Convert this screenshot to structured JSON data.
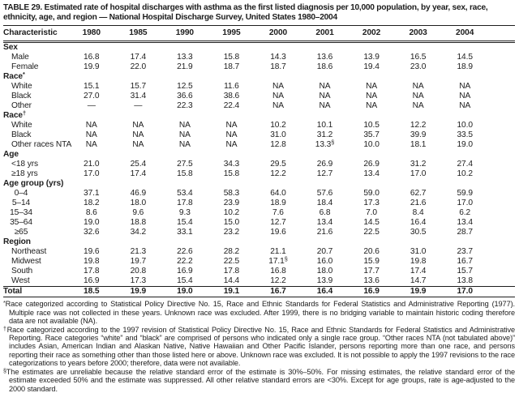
{
  "title": "TABLE 29. Estimated rate of hospital discharges with asthma as the first listed diagnosis per 10,000 population, by year, sex, race, ethnicity, age, and region — National Hospital Discharge Survey, United States 1980–2004",
  "table": {
    "char_header": "Characteristic",
    "years": [
      "1980",
      "1985",
      "1990",
      "1995",
      "2000",
      "2001",
      "2002",
      "2003",
      "2004"
    ],
    "rows": [
      {
        "label": "Sex",
        "type": "section"
      },
      {
        "label": "Male",
        "type": "data",
        "values": [
          "16.8",
          "17.4",
          "13.3",
          "15.8",
          "14.3",
          "13.6",
          "13.9",
          "16.5",
          "14.5"
        ]
      },
      {
        "label": "Female",
        "type": "data",
        "values": [
          "19.9",
          "22.0",
          "21.9",
          "18.7",
          "18.7",
          "18.6",
          "19.4",
          "23.0",
          "18.9"
        ]
      },
      {
        "label": "Race",
        "sup": "*",
        "type": "section"
      },
      {
        "label": "White",
        "type": "data",
        "values": [
          "15.1",
          "15.7",
          "12.5",
          "11.6",
          "NA",
          "NA",
          "NA",
          "NA",
          "NA"
        ]
      },
      {
        "label": "Black",
        "type": "data",
        "values": [
          "27.0",
          "31.4",
          "36.6",
          "38.6",
          "NA",
          "NA",
          "NA",
          "NA",
          "NA"
        ]
      },
      {
        "label": "Other",
        "type": "data",
        "values": [
          "—",
          "—",
          "22.3",
          "22.4",
          "NA",
          "NA",
          "NA",
          "NA",
          "NA"
        ]
      },
      {
        "label": "Race",
        "sup": "†",
        "type": "section"
      },
      {
        "label": "White",
        "type": "data",
        "values": [
          "NA",
          "NA",
          "NA",
          "NA",
          "10.2",
          "10.1",
          "10.5",
          "12.2",
          "10.0"
        ]
      },
      {
        "label": "Black",
        "type": "data",
        "values": [
          "NA",
          "NA",
          "NA",
          "NA",
          "31.0",
          "31.2",
          "35.7",
          "39.9",
          "33.5"
        ]
      },
      {
        "label": "Other races NTA",
        "type": "data",
        "values": [
          "NA",
          "NA",
          "NA",
          "NA",
          "12.8",
          "13.3§",
          "10.0",
          "18.1",
          "19.0"
        ]
      },
      {
        "label": "Age",
        "type": "section"
      },
      {
        "label": "<18 yrs",
        "type": "data",
        "values": [
          "21.0",
          "25.4",
          "27.5",
          "34.3",
          "29.5",
          "26.9",
          "26.9",
          "31.2",
          "27.4"
        ]
      },
      {
        "label": "≥18 yrs",
        "type": "data",
        "values": [
          "17.0",
          "17.4",
          "15.8",
          "15.8",
          "12.2",
          "12.7",
          "13.4",
          "17.0",
          "10.2"
        ]
      },
      {
        "label": "Age group (yrs)",
        "type": "section"
      },
      {
        "label": "0–4",
        "type": "data",
        "indent": "center",
        "values": [
          "37.1",
          "46.9",
          "53.4",
          "58.3",
          "64.0",
          "57.6",
          "59.0",
          "62.7",
          "59.9"
        ]
      },
      {
        "label": "5–14",
        "type": "data",
        "indent": "center",
        "values": [
          "18.2",
          "18.0",
          "17.8",
          "23.9",
          "18.9",
          "18.4",
          "17.3",
          "21.6",
          "17.0"
        ]
      },
      {
        "label": "15–34",
        "type": "data",
        "indent": "center",
        "values": [
          "8.6",
          "9.6",
          "9.3",
          "10.2",
          "7.6",
          "6.8",
          "7.0",
          "8.4",
          "6.2"
        ]
      },
      {
        "label": "35–64",
        "type": "data",
        "indent": "center",
        "values": [
          "19.0",
          "18.8",
          "15.4",
          "15.0",
          "12.7",
          "13.4",
          "14.5",
          "16.4",
          "13.4"
        ]
      },
      {
        "label": "≥65",
        "type": "data",
        "indent": "center",
        "values": [
          "32.6",
          "34.2",
          "33.1",
          "23.2",
          "19.6",
          "21.6",
          "22.5",
          "30.5",
          "28.7"
        ]
      },
      {
        "label": "Region",
        "type": "section"
      },
      {
        "label": "Northeast",
        "type": "data",
        "values": [
          "19.6",
          "21.3",
          "22.6",
          "28.2",
          "21.1",
          "20.7",
          "20.6",
          "31.0",
          "23.7"
        ]
      },
      {
        "label": "Midwest",
        "type": "data",
        "values": [
          "19.8",
          "19.7",
          "22.2",
          "22.5",
          "17.1§",
          "16.0",
          "15.9",
          "19.8",
          "16.7"
        ]
      },
      {
        "label": "South",
        "type": "data",
        "values": [
          "17.8",
          "20.8",
          "16.9",
          "17.8",
          "16.8",
          "18.0",
          "17.7",
          "17.4",
          "15.7"
        ]
      },
      {
        "label": "West",
        "type": "data",
        "values": [
          "16.9",
          "17.3",
          "15.4",
          "14.4",
          "12.2",
          "13.9",
          "13.6",
          "14.7",
          "13.8"
        ]
      },
      {
        "label": "Total",
        "type": "total",
        "values": [
          "18.5",
          "19.9",
          "19.0",
          "19.1",
          "16.7",
          "16.4",
          "16.9",
          "19.9",
          "17.0"
        ]
      }
    ]
  },
  "footnotes": [
    {
      "marker": "*",
      "text": "Race categorized according to Statistical Policy Directive No. 15, Race and Ethnic Standards for Federal Statistics and Administrative Reporting (1977). Multiple race was not collected in these years. Unknown race was excluded. After 1999, there is no bridging variable to maintain historic coding therefore data are not available (NA)."
    },
    {
      "marker": "†",
      "text": "Race categorized according to the 1997 revision of Statistical Policy Directive No. 15, Race and Ethnic Standards for Federal Statistics and Administrative Reporting. Race categories “white” and “black” are comprised of persons who indicated only a single race group. “Other races NTA (not tabulated above)” includes Asian, American Indian and Alaskan Native, Native Hawaiian and Other Pacific Islander, persons reporting more than one race, and persons reporting their race as something other than those listed here or above. Unknown race was excluded. It is not possible to apply the 1997 revisions to the race categorizations to years before 2000; therefore, data were not available."
    },
    {
      "marker": "§",
      "text": "The estimates are unreliable because the relative standard error of the estimate is 30%–50%. For missing estimates, the relative standard error of the estimate exceeded 50% and the estimate was suppressed. All other relative standard errors are <30%. Except for age groups, rate is age-adjusted to the 2000 standard."
    }
  ]
}
